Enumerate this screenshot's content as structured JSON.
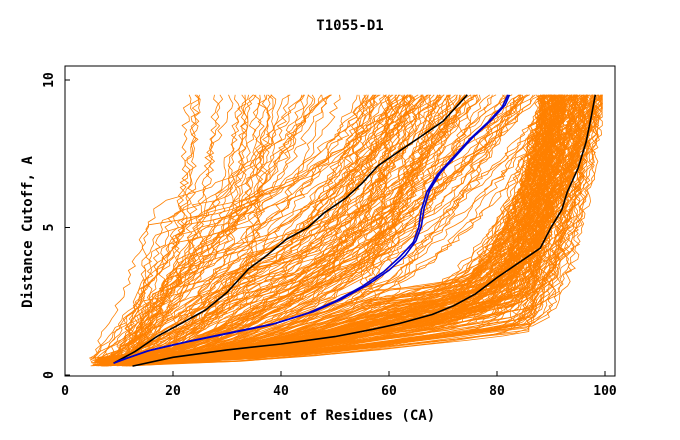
{
  "chart_data": {
    "type": "line",
    "title": "T1055-D1",
    "xlabel": "Percent of Residues (CA)",
    "ylabel": "Distance Cutoff, A",
    "xlim": [
      0,
      100
    ],
    "ylim": [
      0,
      10
    ],
    "x_ticks": [
      "0",
      "20",
      "40",
      "60",
      "80",
      "100"
    ],
    "y_ticks": [
      "0",
      "5",
      "10"
    ],
    "colors": {
      "background_models": "#ff8000",
      "highlight_black": "#000000",
      "highlight_blue": "#0000cc",
      "frame": "#000000"
    },
    "grid": false,
    "legend": "none",
    "highlight_series": [
      {
        "color": "#000000",
        "points": [
          [
            12.5,
            0.3
          ],
          [
            20,
            0.6
          ],
          [
            30,
            0.85
          ],
          [
            40,
            1.05
          ],
          [
            50,
            1.3
          ],
          [
            57,
            1.55
          ],
          [
            62,
            1.75
          ],
          [
            68,
            2.05
          ],
          [
            72,
            2.35
          ],
          [
            76,
            2.75
          ],
          [
            80,
            3.3
          ],
          [
            84,
            3.8
          ],
          [
            88,
            4.3
          ],
          [
            90,
            5.0
          ],
          [
            92,
            5.6
          ],
          [
            93,
            6.2
          ],
          [
            95,
            7.0
          ],
          [
            96.5,
            7.9
          ],
          [
            97.5,
            8.8
          ],
          [
            98.2,
            9.5
          ]
        ]
      },
      {
        "color": "#000000",
        "points": [
          [
            9,
            0.4
          ],
          [
            13,
            0.8
          ],
          [
            17,
            1.3
          ],
          [
            21,
            1.7
          ],
          [
            26,
            2.2
          ],
          [
            30,
            2.8
          ],
          [
            34,
            3.6
          ],
          [
            37,
            4.0
          ],
          [
            41,
            4.6
          ],
          [
            45,
            5.0
          ],
          [
            48,
            5.5
          ],
          [
            52,
            6.0
          ],
          [
            55,
            6.5
          ],
          [
            58,
            7.1
          ],
          [
            62,
            7.6
          ],
          [
            66,
            8.1
          ],
          [
            70,
            8.6
          ],
          [
            72,
            9.0
          ],
          [
            74.5,
            9.5
          ]
        ]
      },
      {
        "color": "#0000cc",
        "points": [
          [
            9,
            0.4
          ],
          [
            15,
            0.8
          ],
          [
            22,
            1.1
          ],
          [
            30,
            1.4
          ],
          [
            38,
            1.7
          ],
          [
            45,
            2.1
          ],
          [
            50,
            2.5
          ],
          [
            55,
            3.0
          ],
          [
            59,
            3.5
          ],
          [
            62,
            4.0
          ],
          [
            64.5,
            4.5
          ],
          [
            65.5,
            5.0
          ],
          [
            66,
            5.6
          ],
          [
            67,
            6.2
          ],
          [
            69,
            6.8
          ],
          [
            72,
            7.4
          ],
          [
            75,
            8.0
          ],
          [
            78.5,
            8.6
          ],
          [
            81,
            9.1
          ],
          [
            82,
            9.5
          ]
        ]
      },
      {
        "color": "#0000cc",
        "points": [
          [
            9.5,
            0.45
          ],
          [
            16,
            0.85
          ],
          [
            23,
            1.15
          ],
          [
            31,
            1.45
          ],
          [
            39,
            1.75
          ],
          [
            46,
            2.15
          ],
          [
            51,
            2.55
          ],
          [
            56,
            3.05
          ],
          [
            60,
            3.55
          ],
          [
            63,
            4.05
          ],
          [
            65,
            4.55
          ],
          [
            66,
            5.05
          ],
          [
            66.5,
            5.65
          ],
          [
            67.5,
            6.25
          ],
          [
            69.5,
            6.85
          ],
          [
            72.5,
            7.45
          ],
          [
            75.5,
            8.05
          ],
          [
            79,
            8.65
          ],
          [
            81.5,
            9.15
          ],
          [
            82.3,
            9.5
          ]
        ]
      }
    ]
  }
}
